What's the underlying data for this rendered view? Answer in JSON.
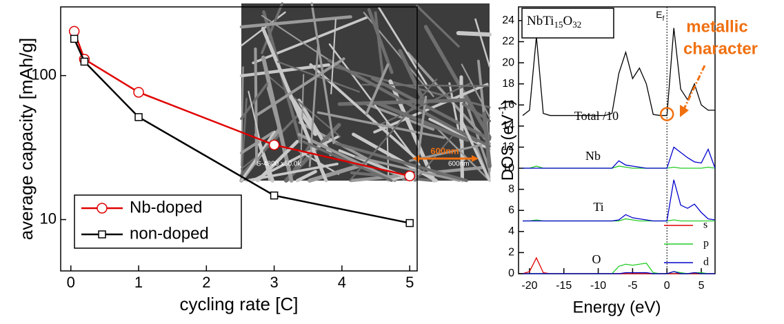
{
  "chart_data": [
    {
      "type": "line",
      "xlabel": "cycling rate [C]",
      "ylabel": "average capacity [mAh/g]",
      "x": [
        0.05,
        0.2,
        1,
        3,
        5
      ],
      "series": [
        {
          "name": "Nb-doped",
          "color": "#e00000",
          "marker": "circle",
          "values": [
            203,
            130,
            76.6,
            33,
            20.1
          ]
        },
        {
          "name": "non-doped",
          "color": "#000000",
          "marker": "square",
          "values": [
            180,
            125,
            51.5,
            14.7,
            9.46
          ]
        }
      ],
      "xlim": [
        -0.15,
        5.11
      ],
      "xticks": [
        0,
        1,
        2,
        3,
        4,
        5
      ],
      "ylim": [
        4.4,
        300
      ],
      "yticks": [
        10,
        100
      ],
      "yscale": "log",
      "legend": "lower left",
      "inset_labels": [
        "S-4800 x50.0k",
        "600nm",
        "600nm"
      ]
    },
    {
      "type": "line",
      "title": [
        "NbTi",
        "15",
        "O",
        "32"
      ],
      "xlabel": "Energy (eV)",
      "ylabel": [
        "DOS (eV",
        "-1",
        ")"
      ],
      "fermi_label": [
        "E",
        "f"
      ],
      "annotation": [
        "metallic",
        "character"
      ],
      "panel_labels": [
        "Total /10",
        "Nb",
        "Ti",
        "O"
      ],
      "x": [
        -21,
        -20,
        -19,
        -18,
        -17,
        -16,
        -15,
        -14,
        -13,
        -12,
        -11,
        -10,
        -9,
        -8,
        -7,
        -6,
        -5,
        -4,
        -3,
        -2,
        -1,
        0,
        1,
        2,
        3,
        4,
        5,
        6,
        7
      ],
      "series": [
        {
          "color": "#000000",
          "values": [
            15,
            15.5,
            22.5,
            15.2,
            15,
            15,
            15,
            15,
            15,
            15,
            15,
            15,
            15,
            15.2,
            19,
            21,
            18.5,
            19.5,
            18,
            15.1,
            15,
            15,
            23.3,
            17.5,
            16.5,
            18,
            16,
            15.5,
            15.5
          ]
        },
        {
          "color": "#22cc22",
          "values": [
            10,
            10,
            10.2,
            10,
            10,
            10,
            10,
            10,
            10,
            10,
            10,
            10,
            10,
            10,
            10.2,
            10.1,
            10,
            10,
            10,
            10,
            10,
            10,
            10.1,
            10,
            10,
            10,
            10,
            10.1,
            10
          ]
        },
        {
          "color": "#0000cc",
          "values": [
            10,
            10,
            10,
            10,
            10,
            10,
            10,
            10,
            10,
            10,
            10,
            10,
            10,
            10,
            10.7,
            10.3,
            10.2,
            10.1,
            10,
            10,
            10,
            10,
            12,
            11.5,
            11,
            10.6,
            10.5,
            11.8,
            10
          ]
        },
        {
          "color": "#22cc22",
          "values": [
            5,
            5,
            5.1,
            5,
            5,
            5,
            5,
            5,
            5,
            5,
            5,
            5,
            5,
            5,
            5,
            5.2,
            5.1,
            5,
            5,
            5,
            5,
            5,
            5.1,
            5,
            5,
            5,
            5,
            5,
            5
          ]
        },
        {
          "color": "#0000cc",
          "values": [
            5,
            5,
            5,
            5,
            5,
            5,
            5,
            5,
            5,
            5,
            5,
            5,
            5,
            5,
            5.1,
            5.6,
            5.3,
            5.2,
            5.1,
            5,
            5,
            5,
            8.9,
            6.5,
            6.2,
            6.6,
            5.8,
            5.2,
            5.1
          ]
        },
        {
          "name": "s",
          "color": "#e00000",
          "values": [
            0,
            0.2,
            1.5,
            0.1,
            0,
            0,
            0,
            0,
            0,
            0,
            0,
            0,
            0,
            0,
            0,
            0,
            0,
            0,
            0,
            0,
            0,
            0,
            0,
            0,
            0,
            0,
            0,
            0,
            0
          ]
        },
        {
          "name": "p",
          "color": "#22cc22",
          "values": [
            0,
            0,
            0,
            0,
            0,
            0,
            0,
            0,
            0,
            0,
            0,
            0,
            0,
            0,
            0.7,
            0.9,
            0.8,
            0.9,
            1,
            0.1,
            0,
            0,
            0.2,
            0.1,
            0,
            0.1,
            0.1,
            0,
            0
          ]
        },
        {
          "name": "d",
          "color": "#0000cc",
          "values": [
            0,
            0,
            0,
            0,
            0,
            0,
            0,
            0,
            0,
            0,
            0,
            0,
            0,
            0,
            0,
            0.1,
            0.1,
            0.1,
            0.1,
            0,
            0,
            0,
            0.2,
            0,
            0,
            0.1,
            0,
            0,
            0
          ]
        }
      ],
      "xlim": [
        -21.6,
        7
      ],
      "xticks": [
        -20,
        -15,
        -10,
        -5,
        0,
        5
      ],
      "ylim": [
        0,
        25.3
      ],
      "yticks": [
        0,
        2,
        4,
        6,
        8,
        10,
        12,
        14,
        16,
        18,
        20,
        22,
        24
      ],
      "legend": "lower right"
    }
  ]
}
